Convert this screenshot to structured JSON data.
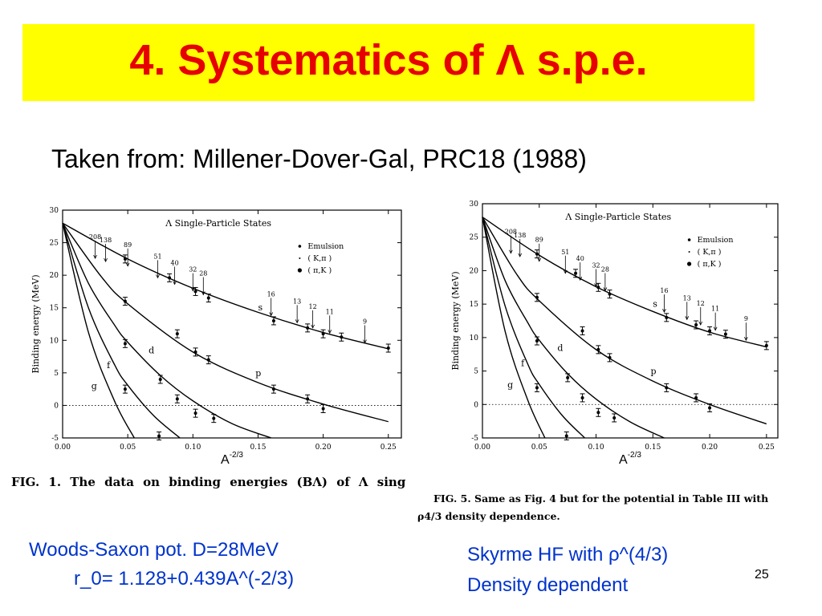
{
  "slide": {
    "title": "4. Systematics of Λ s.p.e.",
    "subtitle": "Taken from:  Millener-Dover-Gal, PRC18 (1988)",
    "left_note": [
      "Woods-Saxon pot.  D=28MeV",
      "r_0= 1.128+0.439A^(-2/3)"
    ],
    "right_note": [
      "Skyrme HF  with ρ^(4/3)",
      "Density  dependent"
    ],
    "page_number": "25",
    "colors": {
      "title_bg": "#ffff00",
      "title_text": "#e60000",
      "note_text": "#0033cc"
    }
  },
  "captions": {
    "left": "FIG. 1.  The data on binding energies (BΛ) of Λ sing",
    "right_line1": "FIG. 5.  Same as Fig. 4 but for the potential in Table III with",
    "right_line2": "ρ4/3 density dependence."
  },
  "chart_data": [
    {
      "type": "line",
      "panel": "left",
      "title": "Λ Single-Particle States",
      "xlabel": "A-2/3",
      "ylabel": "Binding energy (MeV)",
      "xlim": [
        0,
        0.26
      ],
      "ylim": [
        -5,
        30
      ],
      "xticks": [
        "0.00",
        "0.05",
        "0.10",
        "0.15",
        "0.20",
        "0.25"
      ],
      "yticks": [
        "-5",
        "0",
        "5",
        "10",
        "15",
        "20",
        "25",
        "30"
      ],
      "legend": [
        "Emulsion",
        "( K,π )",
        "( π,K )"
      ],
      "legend_position": "top-right",
      "series": [
        {
          "name": "s",
          "x": [
            0,
            0.05,
            0.1,
            0.15,
            0.2,
            0.25
          ],
          "values": [
            28,
            22.5,
            18,
            14.3,
            11.2,
            8.7
          ]
        },
        {
          "name": "p",
          "x": [
            0,
            0.03,
            0.05,
            0.1,
            0.15,
            0.2,
            0.25
          ],
          "values": [
            28,
            19.7,
            15.6,
            8.2,
            3.5,
            0.2,
            -2.5
          ]
        },
        {
          "name": "d",
          "x": [
            0,
            0.02,
            0.04,
            0.05,
            0.075,
            0.1,
            0.13,
            0.16
          ],
          "values": [
            28,
            18.7,
            12.3,
            9.7,
            4.6,
            0.7,
            -2.8,
            -5
          ]
        },
        {
          "name": "f",
          "x": [
            0,
            0.02,
            0.04,
            0.05,
            0.07,
            0.09
          ],
          "values": [
            28,
            14.9,
            6.2,
            3.1,
            -1.6,
            -5
          ]
        },
        {
          "name": "g",
          "x": [
            0,
            0.02,
            0.04,
            0.055
          ],
          "values": [
            28,
            11.1,
            0.6,
            -5
          ]
        }
      ],
      "data_points": [
        {
          "x": 0.048,
          "y": 22.5
        },
        {
          "x": 0.082,
          "y": 19.6
        },
        {
          "x": 0.102,
          "y": 17.5
        },
        {
          "x": 0.112,
          "y": 16.5
        },
        {
          "x": 0.162,
          "y": 13.0
        },
        {
          "x": 0.188,
          "y": 11.9
        },
        {
          "x": 0.2,
          "y": 11.0
        },
        {
          "x": 0.214,
          "y": 10.5
        },
        {
          "x": 0.25,
          "y": 8.8
        },
        {
          "x": 0.048,
          "y": 16.0
        },
        {
          "x": 0.088,
          "y": 11.0
        },
        {
          "x": 0.102,
          "y": 8.2
        },
        {
          "x": 0.112,
          "y": 7.0
        },
        {
          "x": 0.162,
          "y": 2.5
        },
        {
          "x": 0.188,
          "y": 1.0
        },
        {
          "x": 0.2,
          "y": -0.5
        },
        {
          "x": 0.048,
          "y": 9.5
        },
        {
          "x": 0.075,
          "y": 4.0
        },
        {
          "x": 0.088,
          "y": 1.0
        },
        {
          "x": 0.102,
          "y": -1.2
        },
        {
          "x": 0.116,
          "y": -2.0
        },
        {
          "x": 0.048,
          "y": 2.5
        },
        {
          "x": 0.074,
          "y": -4.7
        }
      ],
      "mass_labels": [
        {
          "text": "208",
          "x": 0.025,
          "y": 22.6
        },
        {
          "text": "138",
          "x": 0.033,
          "y": 22.1
        },
        {
          "text": "89",
          "x": 0.05,
          "y": 21.4
        },
        {
          "text": "51",
          "x": 0.073,
          "y": 19.6
        },
        {
          "text": "40",
          "x": 0.086,
          "y": 18.6
        },
        {
          "text": "32",
          "x": 0.1,
          "y": 17.6
        },
        {
          "text": "28",
          "x": 0.108,
          "y": 17.0
        },
        {
          "text": "16",
          "x": 0.16,
          "y": 13.8
        },
        {
          "text": "13",
          "x": 0.18,
          "y": 12.7
        },
        {
          "text": "12",
          "x": 0.192,
          "y": 11.9
        },
        {
          "text": "11",
          "x": 0.205,
          "y": 11.1
        },
        {
          "text": "9",
          "x": 0.232,
          "y": 9.6
        }
      ],
      "curve_labels": [
        {
          "text": "s",
          "x": 0.15,
          "y": 14.6
        },
        {
          "text": "p",
          "x": 0.148,
          "y": 4.5
        },
        {
          "text": "d",
          "x": 0.066,
          "y": 8.0
        },
        {
          "text": "f",
          "x": 0.034,
          "y": 5.7
        },
        {
          "text": "g",
          "x": 0.022,
          "y": 2.5
        }
      ]
    },
    {
      "type": "line",
      "panel": "right",
      "title": "Λ Single-Particle States",
      "xlabel": "A-2/3",
      "ylabel": "Binding energy (MeV)",
      "xlim": [
        0,
        0.26
      ],
      "ylim": [
        -5,
        30
      ],
      "xticks": [
        "0.00",
        "0.05",
        "0.10",
        "0.15",
        "0.20",
        "0.25"
      ],
      "yticks": [
        "-5",
        "0",
        "5",
        "10",
        "15",
        "20",
        "25",
        "30"
      ],
      "legend": [
        "Emulsion",
        "( K,π )",
        "( π,K )"
      ],
      "legend_position": "top-right",
      "series": [
        {
          "name": "s",
          "x": [
            0,
            0.05,
            0.1,
            0.15,
            0.2,
            0.25
          ],
          "values": [
            28,
            22.3,
            17.6,
            13.9,
            10.8,
            8.6
          ]
        },
        {
          "name": "p",
          "x": [
            0,
            0.03,
            0.05,
            0.1,
            0.15,
            0.2,
            0.25
          ],
          "values": [
            28,
            19.5,
            15.5,
            8.2,
            3.5,
            0,
            -2.9
          ]
        },
        {
          "name": "d",
          "x": [
            0,
            0.02,
            0.04,
            0.05,
            0.075,
            0.1,
            0.13,
            0.16
          ],
          "values": [
            28,
            18.5,
            12.2,
            9.6,
            4.6,
            0.8,
            -2.6,
            -5
          ]
        },
        {
          "name": "f",
          "x": [
            0,
            0.02,
            0.04,
            0.05,
            0.07,
            0.09
          ],
          "values": [
            28,
            14.7,
            6.0,
            3.0,
            -1.6,
            -5
          ]
        },
        {
          "name": "g",
          "x": [
            0,
            0.02,
            0.04,
            0.055
          ],
          "values": [
            28,
            10.9,
            0.6,
            -5
          ]
        }
      ],
      "data_points": [
        {
          "x": 0.048,
          "y": 22.5
        },
        {
          "x": 0.082,
          "y": 19.6
        },
        {
          "x": 0.102,
          "y": 17.5
        },
        {
          "x": 0.112,
          "y": 16.5
        },
        {
          "x": 0.162,
          "y": 13.0
        },
        {
          "x": 0.188,
          "y": 11.9
        },
        {
          "x": 0.2,
          "y": 11.0
        },
        {
          "x": 0.214,
          "y": 10.5
        },
        {
          "x": 0.25,
          "y": 8.8
        },
        {
          "x": 0.048,
          "y": 16.0
        },
        {
          "x": 0.088,
          "y": 11.0
        },
        {
          "x": 0.102,
          "y": 8.2
        },
        {
          "x": 0.112,
          "y": 7.0
        },
        {
          "x": 0.162,
          "y": 2.5
        },
        {
          "x": 0.188,
          "y": 1.0
        },
        {
          "x": 0.2,
          "y": -0.5
        },
        {
          "x": 0.048,
          "y": 9.5
        },
        {
          "x": 0.075,
          "y": 4.0
        },
        {
          "x": 0.088,
          "y": 1.0
        },
        {
          "x": 0.102,
          "y": -1.2
        },
        {
          "x": 0.116,
          "y": -2.0
        },
        {
          "x": 0.048,
          "y": 2.5
        },
        {
          "x": 0.074,
          "y": -4.7
        }
      ],
      "mass_labels": [
        {
          "text": "208",
          "x": 0.025,
          "y": 22.6
        },
        {
          "text": "138",
          "x": 0.033,
          "y": 22.1
        },
        {
          "text": "89",
          "x": 0.05,
          "y": 21.4
        },
        {
          "text": "51",
          "x": 0.073,
          "y": 19.6
        },
        {
          "text": "40",
          "x": 0.086,
          "y": 18.6
        },
        {
          "text": "32",
          "x": 0.1,
          "y": 17.6
        },
        {
          "text": "28",
          "x": 0.108,
          "y": 17.0
        },
        {
          "text": "16",
          "x": 0.16,
          "y": 13.8
        },
        {
          "text": "13",
          "x": 0.18,
          "y": 12.7
        },
        {
          "text": "12",
          "x": 0.192,
          "y": 11.9
        },
        {
          "text": "11",
          "x": 0.205,
          "y": 11.1
        },
        {
          "text": "9",
          "x": 0.232,
          "y": 9.6
        }
      ],
      "curve_labels": [
        {
          "text": "s",
          "x": 0.15,
          "y": 14.6
        },
        {
          "text": "p",
          "x": 0.148,
          "y": 4.5
        },
        {
          "text": "d",
          "x": 0.066,
          "y": 8.0
        },
        {
          "text": "f",
          "x": 0.034,
          "y": 5.7
        },
        {
          "text": "g",
          "x": 0.022,
          "y": 2.5
        }
      ]
    }
  ]
}
